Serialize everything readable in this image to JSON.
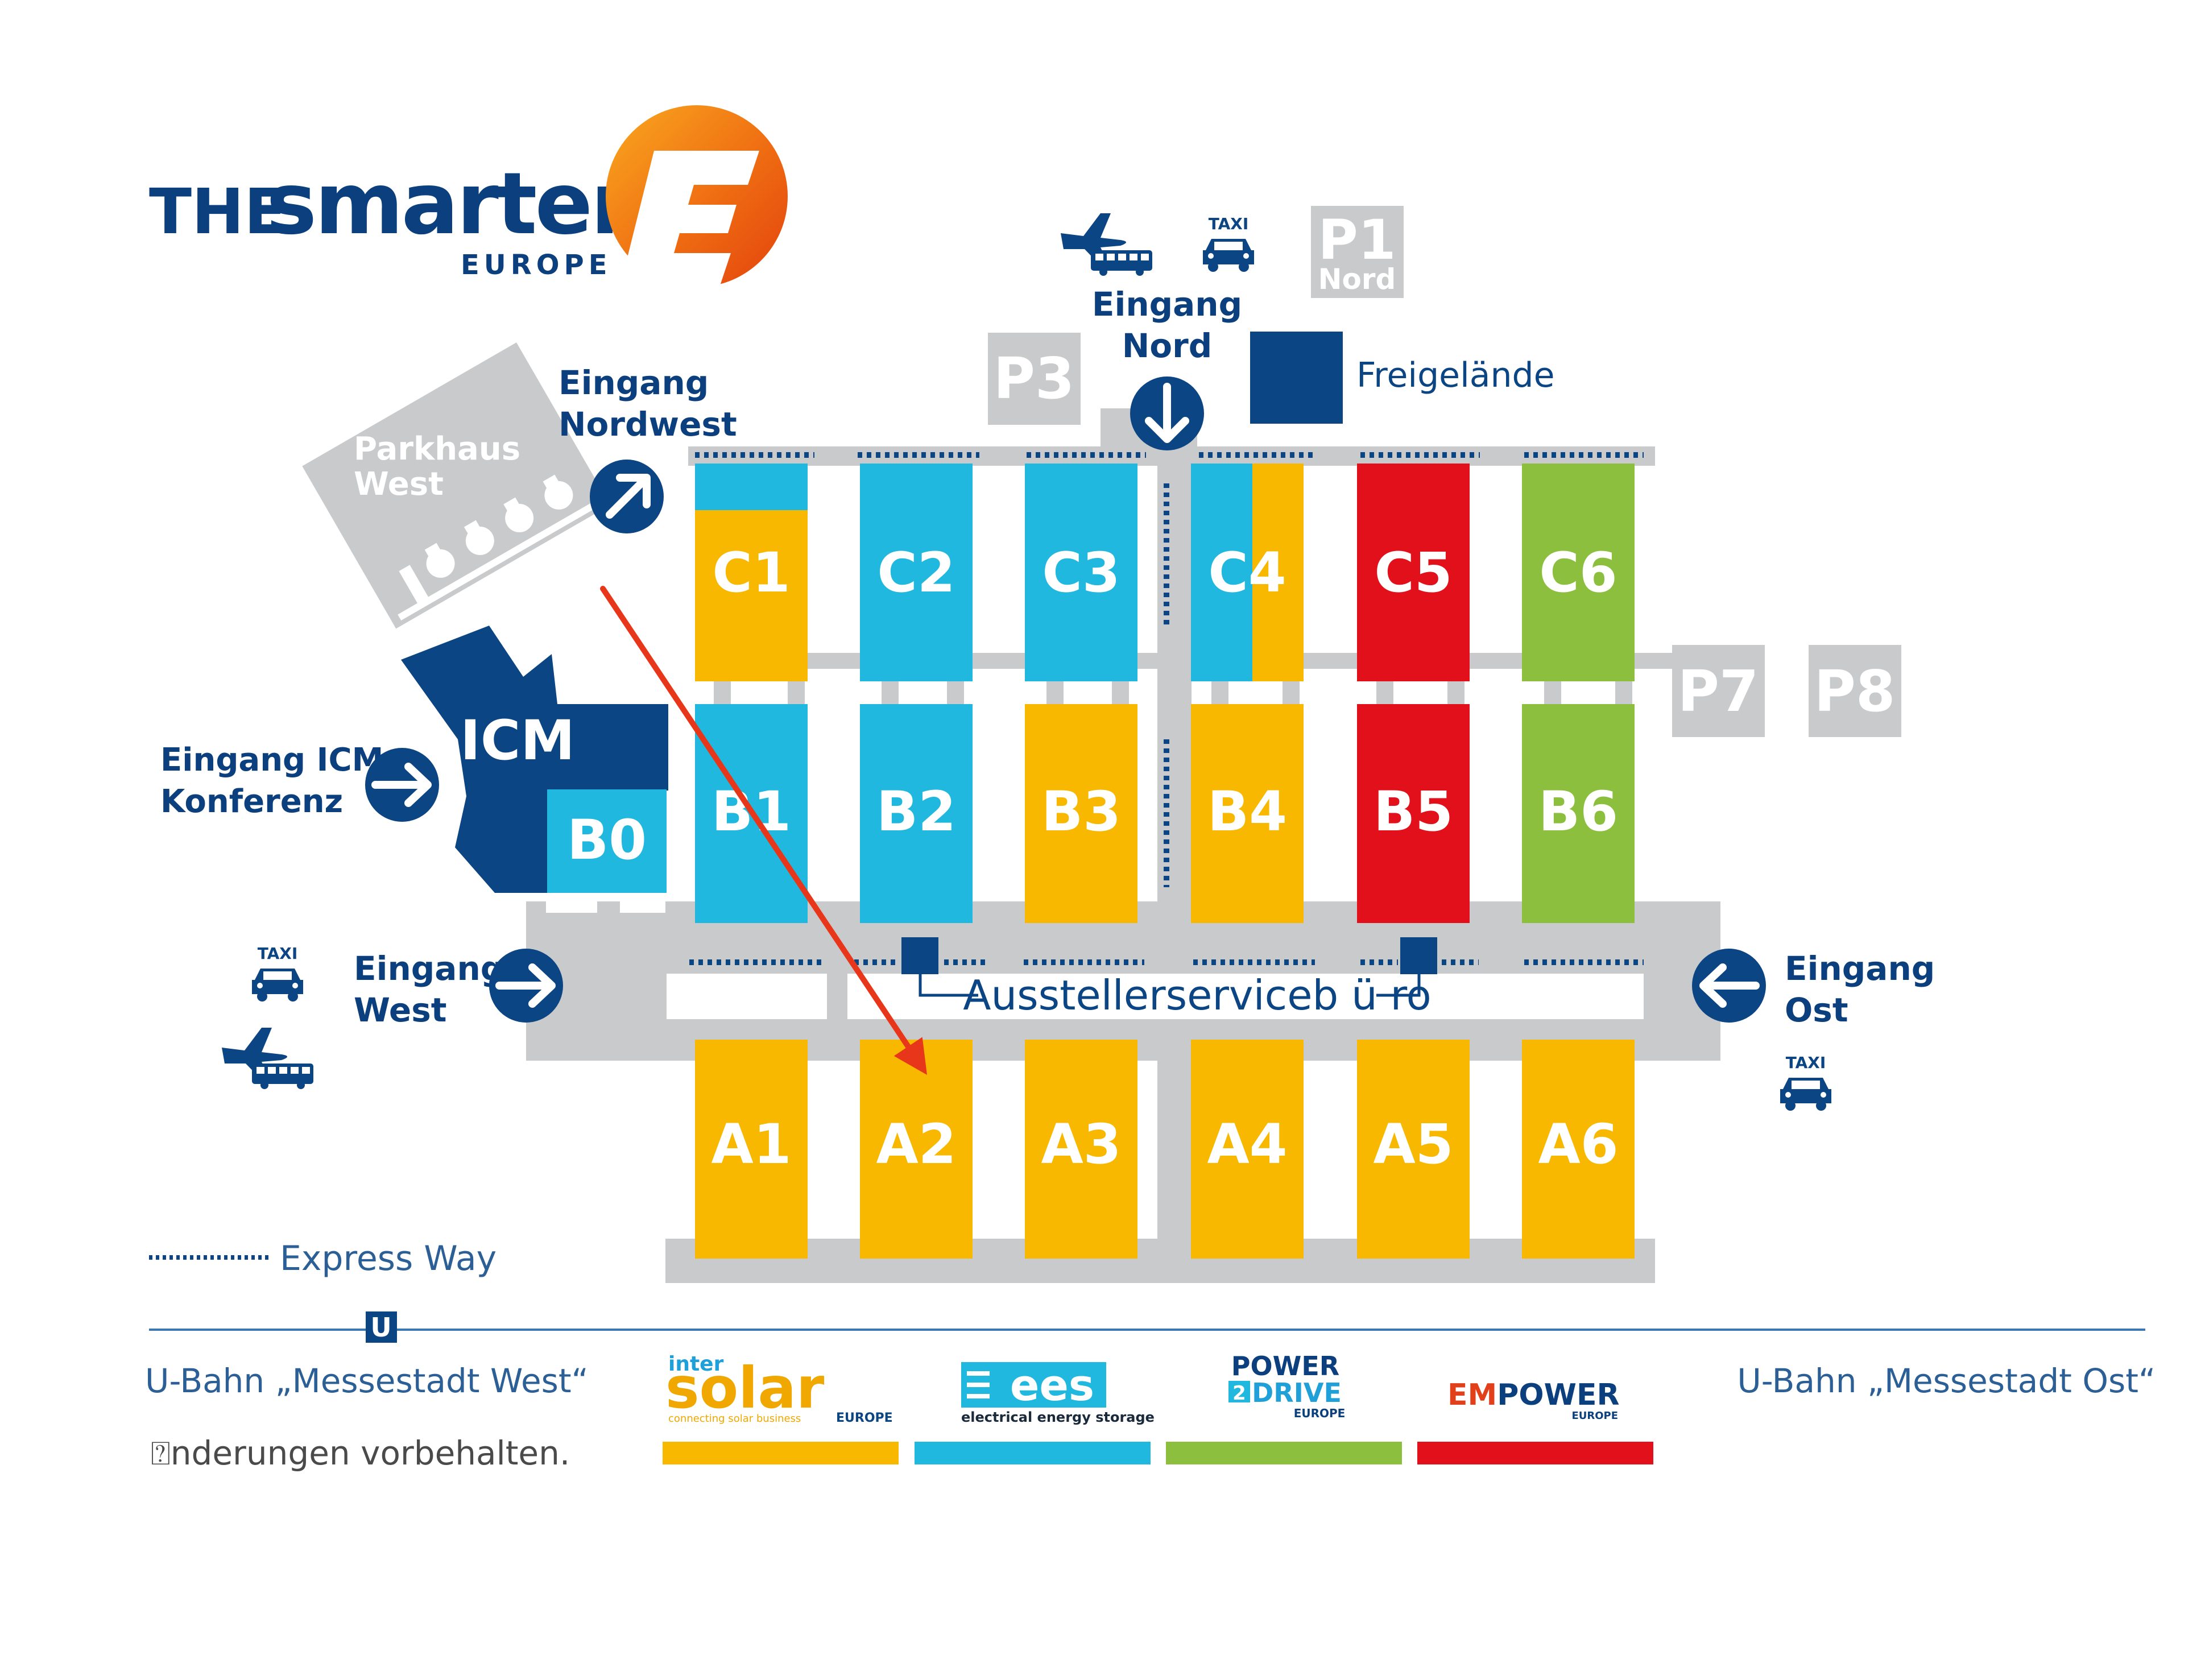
{
  "colors": {
    "intersolar": "#f8b800",
    "ees": "#20b8de",
    "power2drive": "#8dbf3f",
    "empower": "#e2101a",
    "navy": "#0b4584",
    "grey": "#c8cacc",
    "route": "#e8361a"
  },
  "logo": {
    "the": "THE",
    "smarter": "smarter",
    "europe": "EUROPE",
    "mark": "E"
  },
  "halls": {
    "C1": "C1",
    "C2": "C2",
    "C3": "C3",
    "C4": "C4",
    "C5": "C5",
    "C6": "C6",
    "B0": "B0",
    "B1": "B1",
    "B2": "B2",
    "B3": "B3",
    "B4": "B4",
    "B5": "B5",
    "B6": "B6",
    "A1": "A1",
    "A2": "A2",
    "A3": "A3",
    "A4": "A4",
    "A5": "A5",
    "A6": "A6",
    "ICM": "ICM"
  },
  "parking": {
    "P1": "P1",
    "P1_sub": "Nord",
    "P3": "P3",
    "P7": "P7",
    "P8": "P8",
    "parkhaus_line1": "Parkhaus",
    "parkhaus_line2": "West"
  },
  "entrances": {
    "nord_line1": "Eingang",
    "nord_line2": "Nord",
    "nordwest_line1": "Eingang",
    "nordwest_line2": "Nordwest",
    "icm_line1": "Eingang ICM",
    "icm_line2": "Konferenz",
    "west_line1": "Eingang",
    "west_line2": "West",
    "ost_line1": "Eingang",
    "ost_line2": "Ost"
  },
  "labels": {
    "freigelaende": "Freigelände",
    "ausstellerservice": "Ausstellerserviceb ü ro",
    "express_way": "Express Way",
    "ubahn_west": "U-Bahn „Messestadt West“",
    "ubahn_ost": "U-Bahn „Messestadt Ost“",
    "u_sign": "U",
    "taxi": "TAXI",
    "disclaimer": "⍰nderungen vorbehalten."
  },
  "icons": {
    "entrance_arrow": "arrow-circle-icon",
    "taxi": "taxi-icon",
    "airplane": "airplane-icon",
    "bus": "bus-icon"
  },
  "brands": {
    "intersolar_small": "inter",
    "intersolar_big": "solar",
    "intersolar_tag": "connecting solar business",
    "intersolar_region": "EUROPE",
    "ees_name": "ees",
    "ees_tag": "electrical energy storage",
    "p2d_line1": "POWER",
    "p2d_two": "2",
    "p2d_line2": "DRIVE",
    "p2d_region": "EUROPE",
    "empower_em": "EM",
    "empower_power": "POWER",
    "empower_region": "EUROPE"
  }
}
